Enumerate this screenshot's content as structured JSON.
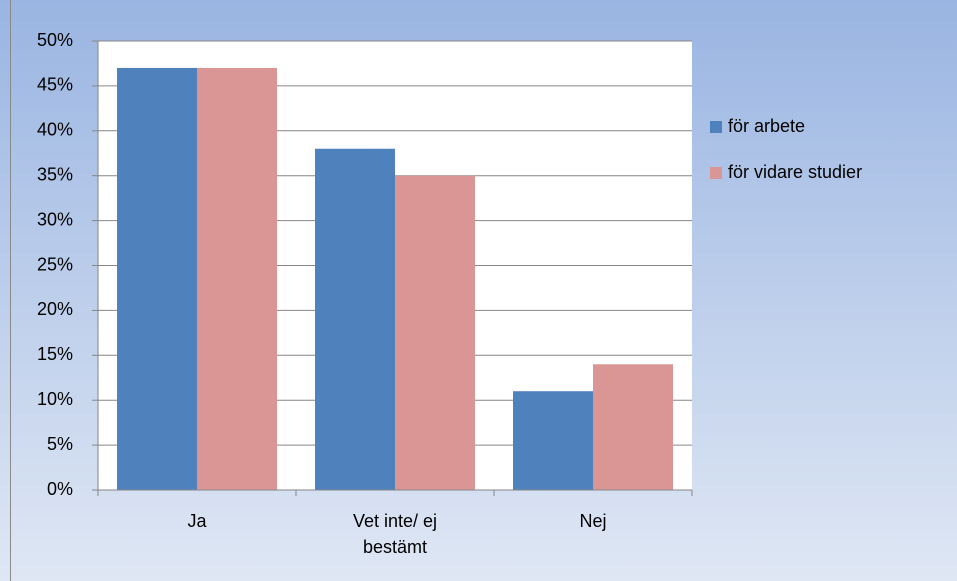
{
  "chart_data": {
    "type": "bar",
    "categories": [
      "Ja",
      "Vet inte/ ej bestämt",
      "Nej"
    ],
    "series": [
      {
        "name": "för arbete",
        "color": "#4f81bd",
        "values": [
          47,
          38,
          11
        ]
      },
      {
        "name": "för vidare studier",
        "color": "#d99694",
        "values": [
          47,
          35,
          14
        ]
      }
    ],
    "ylim": [
      0,
      50
    ],
    "yticks": [
      {
        "value": 0,
        "label": "0%"
      },
      {
        "value": 5,
        "label": "5%"
      },
      {
        "value": 10,
        "label": "10%"
      },
      {
        "value": 15,
        "label": "15%"
      },
      {
        "value": 20,
        "label": "20%"
      },
      {
        "value": 25,
        "label": "25%"
      },
      {
        "value": 30,
        "label": "30%"
      },
      {
        "value": 35,
        "label": "35%"
      },
      {
        "value": 40,
        "label": "40%"
      },
      {
        "value": 45,
        "label": "45%"
      },
      {
        "value": 50,
        "label": "50%"
      }
    ],
    "grid": true,
    "legend": "right"
  }
}
